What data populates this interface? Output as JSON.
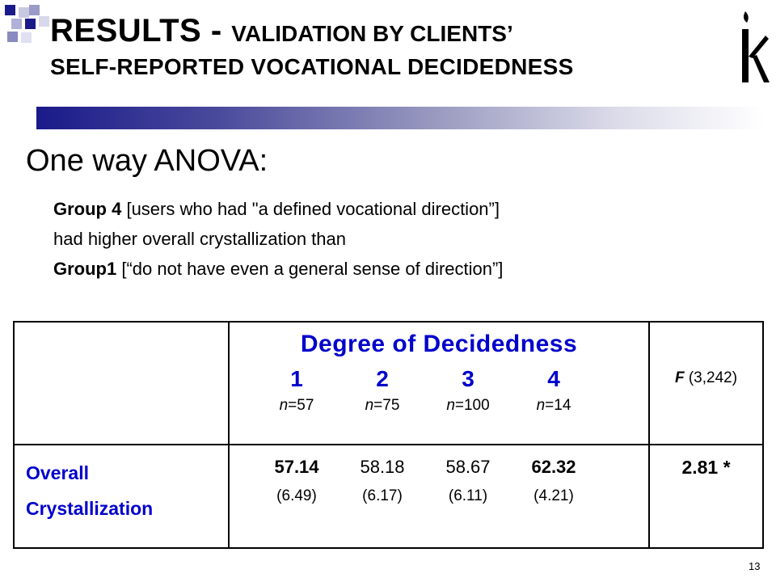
{
  "slide": {
    "title_main": "RESULTS - ",
    "title_sub_line1": "VALIDATION BY CLIENTS’",
    "title_sub_line2": "SELF-REPORTED VOCATIONAL DECIDEDNESS",
    "heading": "One way ANOVA:",
    "description": {
      "line1_bold": "Group 4",
      "line1_rest": " [users who had \"a defined vocational direction”]",
      "line2": "had higher overall crystallization than",
      "line3_bold": "Group1",
      "line3_rest": " [“do not have even a general sense of direction”]"
    },
    "page_number": "13"
  },
  "table": {
    "header_title": "Degree of Decidedness",
    "groups": [
      {
        "label": "1",
        "n_prefix": "n",
        "n_value": "=57",
        "mean": "57.14",
        "mean_bold": true,
        "sd": "(6.49)"
      },
      {
        "label": "2",
        "n_prefix": "n",
        "n_value": "=75",
        "mean": "58.18",
        "mean_bold": false,
        "sd": "(6.17)"
      },
      {
        "label": "3",
        "n_prefix": "n",
        "n_value": "=100",
        "mean": "58.67",
        "mean_bold": false,
        "sd": "(6.11)"
      },
      {
        "label": "4",
        "n_prefix": "n",
        "n_value": "=14",
        "mean": "62.32",
        "mean_bold": true,
        "sd": "(4.21)"
      }
    ],
    "f_label": "F",
    "f_df": " (3,242)",
    "row_label_line1": "Overall",
    "row_label_line2": "Crystallization",
    "f_value": "2.81 *"
  },
  "colors": {
    "accent_blue": "#0000cc",
    "bar_start": "#1a1a8a",
    "bar_end": "#ffffff"
  },
  "icons": [
    "decorative-squares-icon",
    "logo-icon"
  ]
}
